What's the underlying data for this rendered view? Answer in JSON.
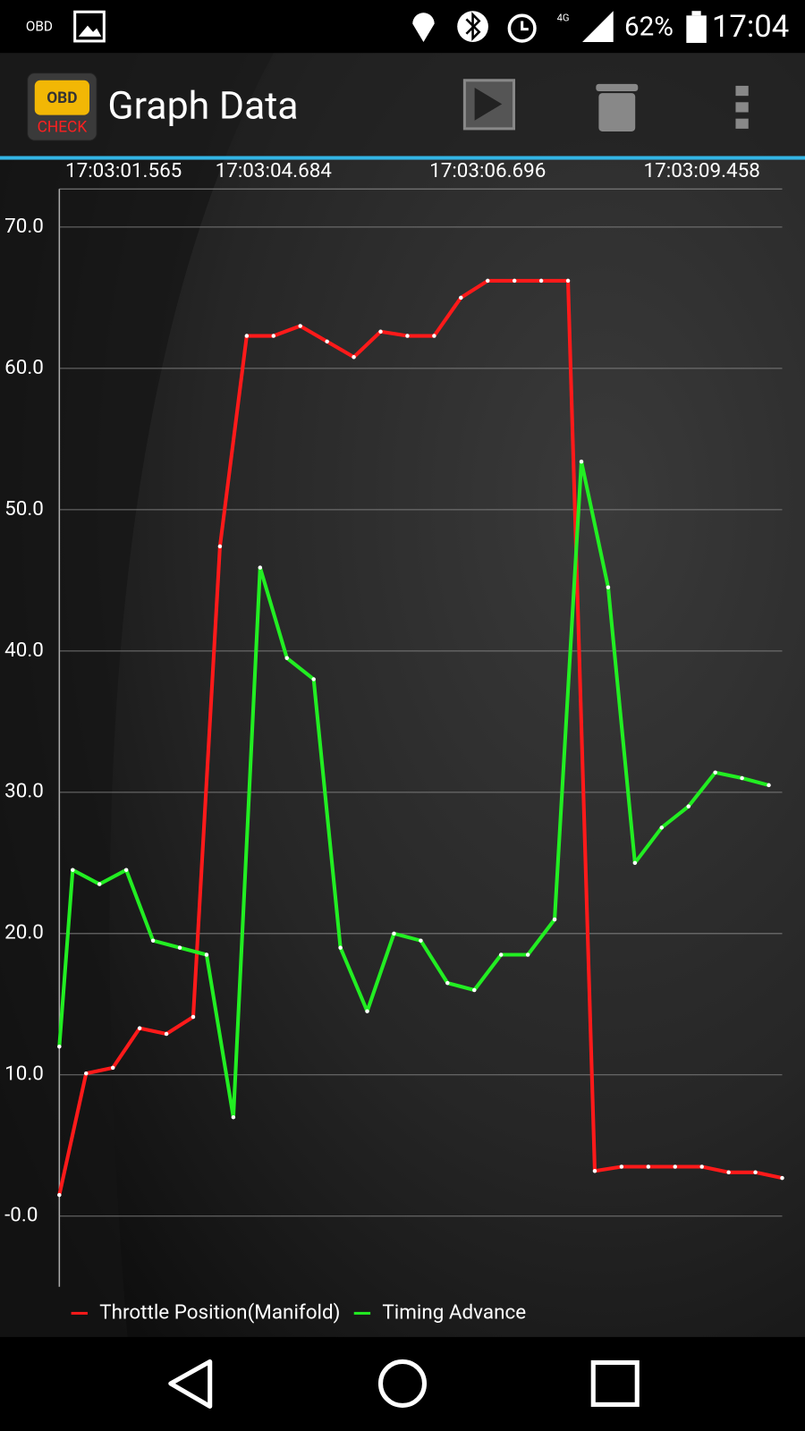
{
  "status_bar": {
    "left_icon": "OBD",
    "network": "4G",
    "battery": "62%",
    "time": "17:04"
  },
  "app_bar": {
    "logo_top": "OBD",
    "logo_bottom": "CHECK",
    "title": "Graph Data"
  },
  "chart_data": {
    "type": "line",
    "series": [
      {
        "name": "Throttle Position(Manifold)",
        "color": "#ff1a1a",
        "x": [
          0,
          1,
          2,
          3,
          4,
          5,
          6,
          7,
          8,
          9,
          10,
          11,
          12,
          13,
          14,
          15,
          16,
          17,
          18,
          19,
          20,
          21,
          22,
          23,
          24,
          25,
          26,
          27
        ],
        "values": [
          1.5,
          10.1,
          10.5,
          13.3,
          12.9,
          14.1,
          47.4,
          62.3,
          62.3,
          63.0,
          61.9,
          60.8,
          62.6,
          62.3,
          62.3,
          65.0,
          66.2,
          66.2,
          66.2,
          66.2,
          3.2,
          3.5,
          3.5,
          3.5,
          3.5,
          3.1,
          3.1,
          2.7
        ]
      },
      {
        "name": "Timing Advance",
        "color": "#22ee22",
        "x": [
          0,
          0.5,
          1.5,
          2.5,
          3.5,
          4.5,
          5.5,
          6.5,
          7.5,
          8.5,
          9.5,
          10.5,
          11.5,
          12.5,
          13.5,
          14.5,
          15.5,
          16.5,
          17.5,
          18.5,
          19.5,
          20.5,
          21.5,
          22.5,
          23.5,
          24.5,
          25.5,
          26.5
        ],
        "values": [
          12.0,
          24.5,
          23.5,
          24.5,
          19.5,
          19.0,
          18.5,
          7.0,
          45.9,
          39.5,
          38.0,
          19.0,
          14.5,
          20.0,
          19.5,
          16.5,
          16.0,
          18.5,
          18.5,
          21.0,
          53.4,
          44.5,
          25.0,
          27.5,
          29.0,
          31.4,
          31.0,
          30.5
        ]
      }
    ],
    "xlim": [
      0,
      27
    ],
    "xticks": [
      {
        "value": 2.4,
        "label": "17:03:01.565"
      },
      {
        "value": 8,
        "label": "17:03:04.684"
      },
      {
        "value": 16,
        "label": "17:03:06.696"
      },
      {
        "value": 24,
        "label": "17:03:09.458"
      }
    ],
    "ylim": [
      -5,
      72.7
    ],
    "yticks": [
      {
        "value": 0,
        "label": "-0.0"
      },
      {
        "value": 10,
        "label": "10.0"
      },
      {
        "value": 20,
        "label": "20.0"
      },
      {
        "value": 30,
        "label": "30.0"
      },
      {
        "value": 40,
        "label": "40.0"
      },
      {
        "value": 50,
        "label": "50.0"
      },
      {
        "value": 60,
        "label": "60.0"
      },
      {
        "value": 70,
        "label": "70.0"
      }
    ],
    "grid": true,
    "legend": "bottom-left"
  }
}
